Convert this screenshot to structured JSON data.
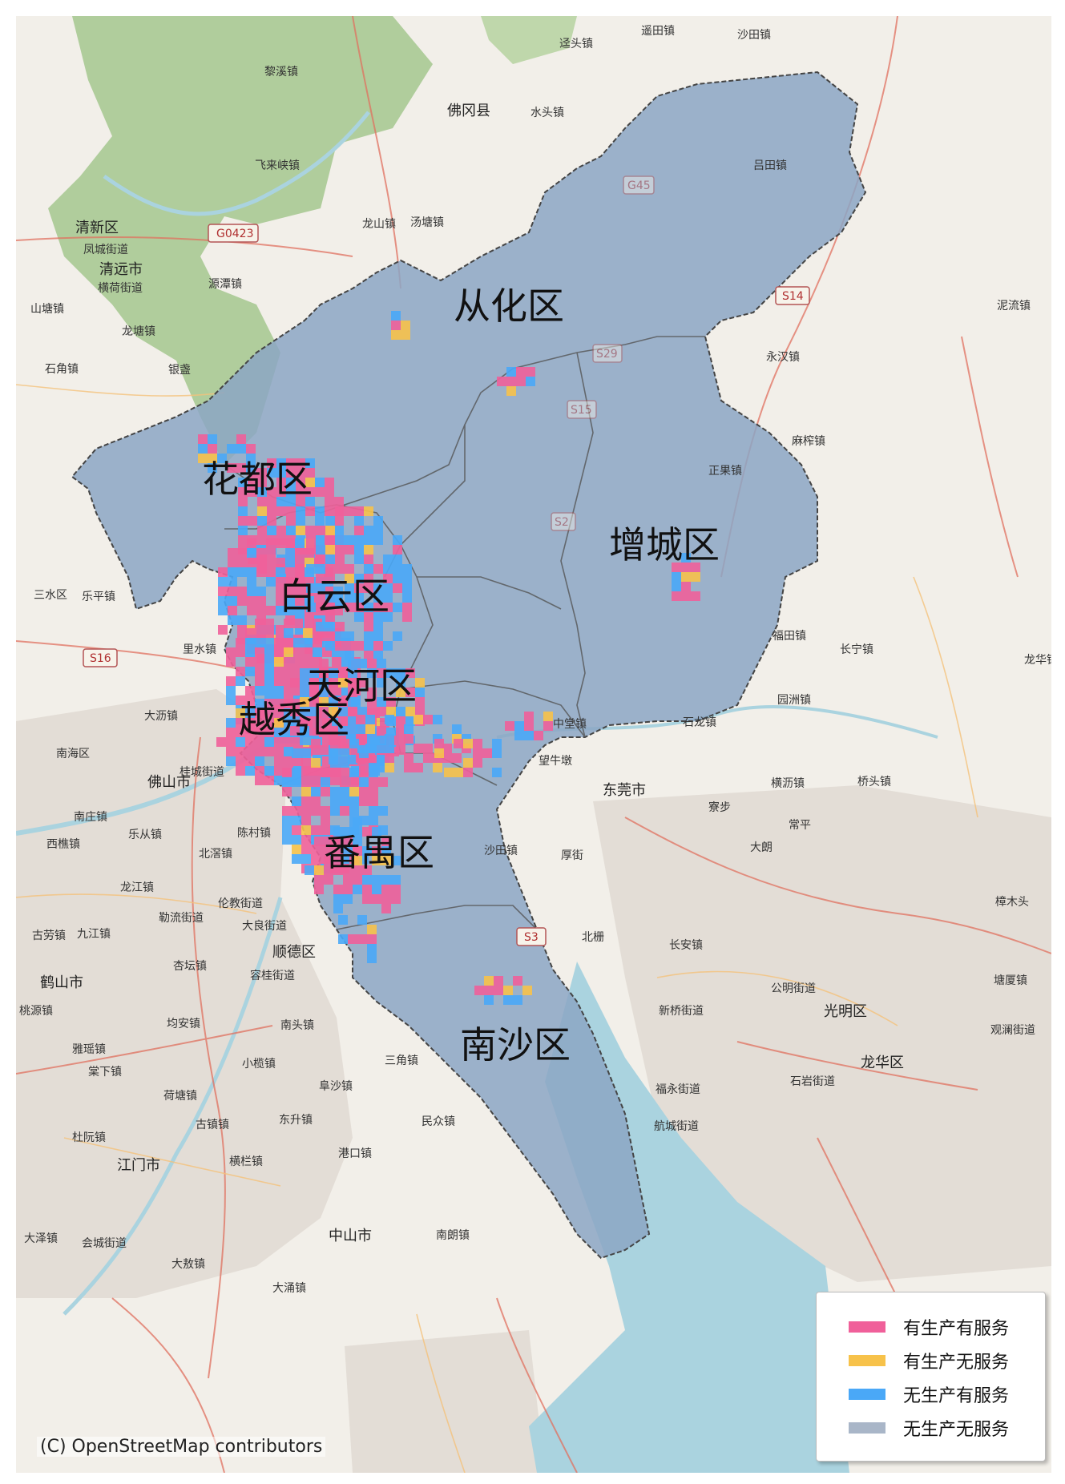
{
  "map": {
    "basemap": "OpenStreetMap",
    "attribution": "(C) OpenStreetMap contributors",
    "colors": {
      "prod_service": "#f0609a",
      "prod_noservice": "#f7c24a",
      "noprod_service": "#4aa8f7",
      "noprod_noservice": "#a9b6c8",
      "region_fill": "#8ca6c4",
      "land": "#f2efe9",
      "forest": "#a8c994",
      "water": "#aad3df",
      "urban": "#e3ddd6"
    },
    "districts": [
      {
        "name": "从化区"
      },
      {
        "name": "花都区"
      },
      {
        "name": "增城区"
      },
      {
        "name": "白云区"
      },
      {
        "name": "天河区"
      },
      {
        "name": "越秀区"
      },
      {
        "name": "番禺区"
      },
      {
        "name": "南沙区"
      }
    ],
    "places": [
      "沙田镇",
      "遥田镇",
      "迳头镇",
      "黎溪镇",
      "佛冈县",
      "水头镇",
      "飞来峡镇",
      "吕田镇",
      "龙山镇",
      "汤塘镇",
      "清新区",
      "凤城街道",
      "清远市",
      "横荷街道",
      "源潭镇",
      "山塘镇",
      "龙塘镇",
      "石角镇",
      "银盏",
      "永汉镇",
      "麻榨镇",
      "福田镇",
      "长宁镇",
      "龙华镇",
      "东莞市",
      "横沥镇",
      "桥头镇",
      "寮步",
      "常平",
      "大朗",
      "里水镇",
      "大沥镇",
      "南海区",
      "佛山市",
      "桂城街道",
      "南庄镇",
      "乐从镇",
      "西樵镇",
      "北滘镇",
      "陈村镇",
      "龙江镇",
      "伦教街道",
      "勒流街道",
      "大良街道",
      "九江镇",
      "古劳镇",
      "顺德区",
      "鹤山市",
      "容桂街道",
      "杏坛镇",
      "均安镇",
      "南头镇",
      "雅瑶镇",
      "桃源镇",
      "棠下镇",
      "荷塘镇",
      "小榄镇",
      "阜沙镇",
      "三角镇",
      "古镇镇",
      "东升镇",
      "民众镇",
      "江门市",
      "杜阮镇",
      "横栏镇",
      "港口镇",
      "中山市",
      "南朗镇",
      "大泽镇",
      "会城街道",
      "大敖镇",
      "大涌镇",
      "沙田镇",
      "厚街",
      "长安镇",
      "新桥街道",
      "公明街道",
      "光明区",
      "石岩街道",
      "福永街道",
      "龙华区",
      "航城街道",
      "中堂镇",
      "望牛墩",
      "石龙镇",
      "园洲镇",
      "樟木头",
      "塘厦镇",
      "观澜街道",
      "北栅",
      "乐平镇",
      "三水区",
      "泥流镇",
      "正果镇"
    ],
    "roads": [
      "G0423",
      "S14",
      "S16",
      "S3",
      "G45",
      "S29",
      "S15",
      "S2"
    ]
  },
  "legend": {
    "items": [
      {
        "label": "有生产有服务",
        "color": "#f0609a"
      },
      {
        "label": "有生产无服务",
        "color": "#f7c24a"
      },
      {
        "label": "无生产有服务",
        "color": "#4aa8f7"
      },
      {
        "label": "无生产无服务",
        "color": "#a9b6c8"
      }
    ]
  }
}
